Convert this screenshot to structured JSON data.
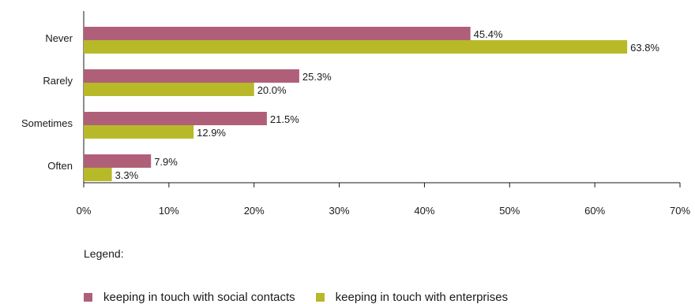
{
  "chart_data": {
    "type": "bar",
    "orientation": "horizontal",
    "categories": [
      "Never",
      "Rarely",
      "Sometimes",
      "Often"
    ],
    "series": [
      {
        "name": "keeping in touch with social contacts",
        "color": "#b05f79",
        "values": [
          45.4,
          25.3,
          21.5,
          7.9
        ],
        "labels": [
          "45.4%",
          "25.3%",
          "21.5%",
          "7.9%"
        ]
      },
      {
        "name": "keeping in touch with enterprises",
        "color": "#b8b929",
        "values": [
          63.8,
          20.0,
          12.9,
          3.3
        ],
        "labels": [
          "63.8%",
          "20.0%",
          "12.9%",
          "3.3%"
        ]
      }
    ],
    "xlim": [
      0,
      70
    ],
    "xticks": [
      0,
      10,
      20,
      30,
      40,
      50,
      60,
      70
    ],
    "xtick_labels": [
      "0%",
      "10%",
      "20%",
      "30%",
      "40%",
      "50%",
      "60%",
      "70%"
    ],
    "grid": false
  },
  "legend": {
    "title": "Legend:",
    "items": [
      {
        "label": "keeping in touch with social contacts",
        "color": "#b05f79"
      },
      {
        "label": "keeping in touch with enterprises",
        "color": "#b8b929"
      }
    ]
  }
}
